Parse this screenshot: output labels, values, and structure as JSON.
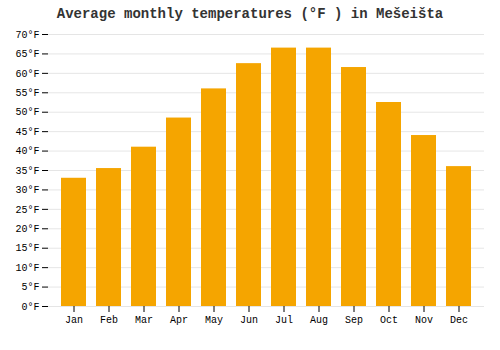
{
  "chart_data": {
    "type": "bar",
    "title": "Average monthly temperatures (°F ) in Mešeišta",
    "categories": [
      "Jan",
      "Feb",
      "Mar",
      "Apr",
      "May",
      "Jun",
      "Jul",
      "Aug",
      "Sep",
      "Oct",
      "Nov",
      "Dec"
    ],
    "values": [
      33,
      35.5,
      41,
      48.5,
      56,
      62.5,
      66.5,
      66.5,
      61.5,
      52.5,
      44,
      36
    ],
    "color": "#F5A500",
    "ylim": [
      0,
      70
    ],
    "yticks": [
      {
        "value": 0,
        "label": "0°F"
      },
      {
        "value": 5,
        "label": "5°F"
      },
      {
        "value": 10,
        "label": "10°F"
      },
      {
        "value": 15,
        "label": "15°F"
      },
      {
        "value": 20,
        "label": "20°F"
      },
      {
        "value": 25,
        "label": "25°F"
      },
      {
        "value": 30,
        "label": "30°F"
      },
      {
        "value": 35,
        "label": "35°F"
      },
      {
        "value": 40,
        "label": "40°F"
      },
      {
        "value": 45,
        "label": "45°F"
      },
      {
        "value": 50,
        "label": "50°F"
      },
      {
        "value": 55,
        "label": "55°F"
      },
      {
        "value": 60,
        "label": "60°F"
      },
      {
        "value": 65,
        "label": "65°F"
      },
      {
        "value": 70,
        "label": "70°F"
      }
    ],
    "grid": true
  }
}
